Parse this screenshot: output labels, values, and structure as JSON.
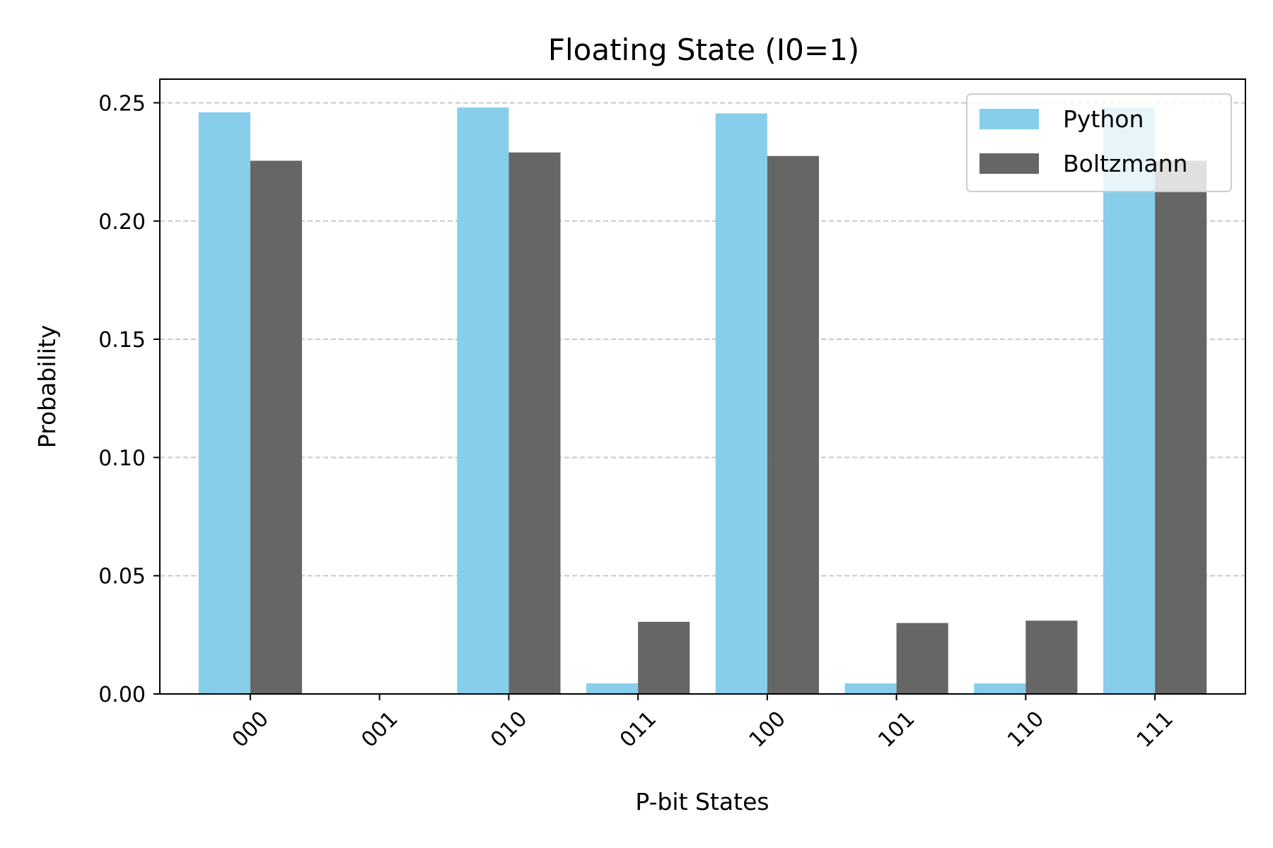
{
  "chart_data": {
    "type": "bar",
    "title": "Floating State (I0=1)",
    "xlabel": "P-bit States",
    "ylabel": "Probability",
    "categories": [
      "000",
      "001",
      "010",
      "011",
      "100",
      "101",
      "110",
      "111"
    ],
    "series": [
      {
        "name": "Python",
        "color": "#87ceeb",
        "values": [
          0.246,
          0.0,
          0.248,
          0.0045,
          0.2455,
          0.0045,
          0.0045,
          0.248
        ]
      },
      {
        "name": "Boltzmann",
        "color": "#666666",
        "values": [
          0.2255,
          0.0,
          0.229,
          0.0305,
          0.2275,
          0.03,
          0.031,
          0.2255
        ]
      }
    ],
    "ylim": [
      0,
      0.26
    ],
    "yticks": [
      0.0,
      0.05,
      0.1,
      0.15,
      0.2,
      0.25
    ],
    "ytick_labels": [
      "0.00",
      "0.05",
      "0.10",
      "0.15",
      "0.20",
      "0.25"
    ],
    "grid": "y-dashed",
    "legend": "top-right"
  }
}
